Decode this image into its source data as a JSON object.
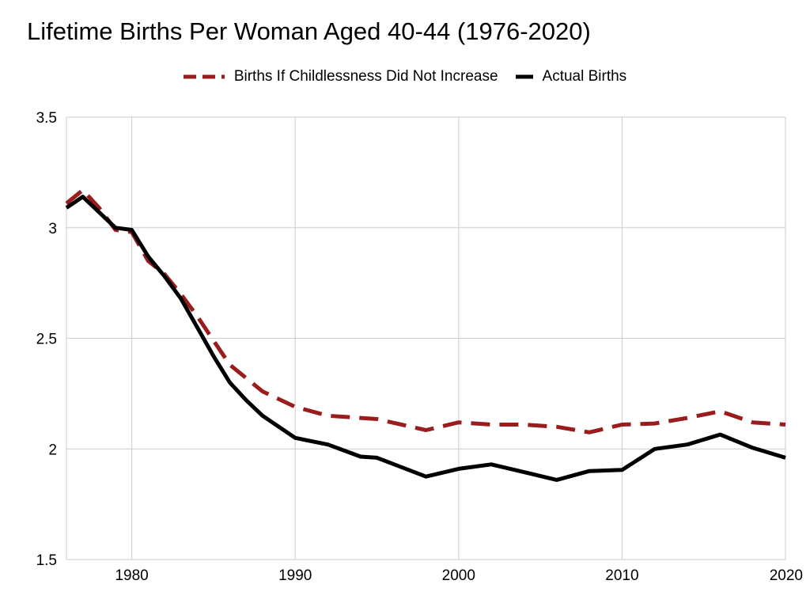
{
  "chart_data": {
    "type": "line",
    "title": "Lifetime Births Per Woman Aged 40-44 (1976-2020)",
    "xlabel": "",
    "ylabel": "",
    "xlim": [
      1976,
      2020
    ],
    "ylim": [
      1.5,
      3.5
    ],
    "x_ticks": [
      1980,
      1990,
      2000,
      2010,
      2020
    ],
    "y_ticks": [
      1.5,
      2,
      2.5,
      3,
      3.5
    ],
    "y_tick_labels": [
      "1.5",
      "2",
      "2.5",
      "3",
      "3.5"
    ],
    "x_tick_labels": [
      "1980",
      "1990",
      "2000",
      "2010",
      "2020"
    ],
    "grid": true,
    "legend_position": "top",
    "series": [
      {
        "name": "Births If Childlessness Did Not Increase",
        "color": "#9b1c1c",
        "style": "dashed",
        "x": [
          1976,
          1977,
          1978,
          1979,
          1980,
          1981,
          1982,
          1983,
          1984,
          1985,
          1986,
          1987,
          1988,
          1990,
          1992,
          1994,
          1995,
          1998,
          2000,
          2002,
          2004,
          2006,
          2008,
          2010,
          2012,
          2014,
          2016,
          2018,
          2020
        ],
        "values": [
          3.11,
          3.17,
          3.09,
          2.99,
          2.98,
          2.85,
          2.79,
          2.7,
          2.6,
          2.49,
          2.38,
          2.32,
          2.26,
          2.19,
          2.15,
          2.14,
          2.135,
          2.085,
          2.12,
          2.11,
          2.11,
          2.1,
          2.075,
          2.11,
          2.115,
          2.14,
          2.17,
          2.12,
          2.11
        ]
      },
      {
        "name": "Actual Births",
        "color": "#000000",
        "style": "solid",
        "x": [
          1976,
          1977,
          1978,
          1979,
          1980,
          1981,
          1982,
          1983,
          1984,
          1985,
          1986,
          1987,
          1988,
          1990,
          1992,
          1994,
          1995,
          1998,
          2000,
          2002,
          2004,
          2006,
          2008,
          2010,
          2012,
          2014,
          2016,
          2018,
          2020
        ],
        "values": [
          3.09,
          3.14,
          3.07,
          3.0,
          2.99,
          2.87,
          2.78,
          2.68,
          2.55,
          2.42,
          2.3,
          2.22,
          2.15,
          2.05,
          2.02,
          1.965,
          1.96,
          1.875,
          1.91,
          1.93,
          1.895,
          1.86,
          1.9,
          1.905,
          2.0,
          2.02,
          2.065,
          2.005,
          1.96
        ]
      }
    ]
  }
}
